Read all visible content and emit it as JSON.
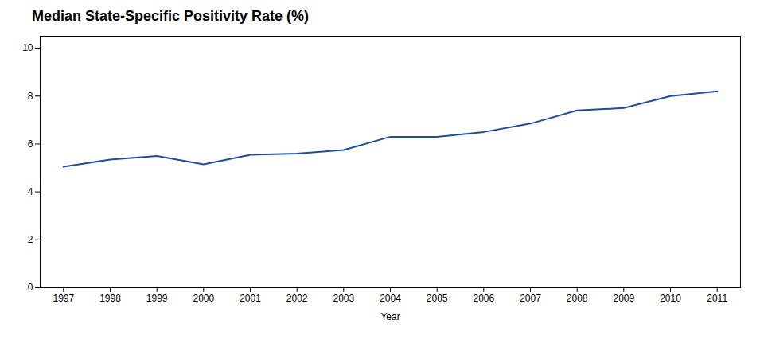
{
  "chart_data": {
    "type": "line",
    "title": "Median State-Specific Positivity Rate (%)",
    "xlabel": "Year",
    "x": [
      1997,
      1998,
      1999,
      2000,
      2001,
      2002,
      2003,
      2004,
      2005,
      2006,
      2007,
      2008,
      2009,
      2010,
      2011
    ],
    "values": [
      5.05,
      5.35,
      5.5,
      5.15,
      5.55,
      5.6,
      5.75,
      6.3,
      6.3,
      6.5,
      6.85,
      7.4,
      7.5,
      8.0,
      8.2
    ],
    "color": "#1F4E99",
    "xlim": [
      1996.5,
      2011.5
    ],
    "xticks": [
      1997,
      1998,
      1999,
      2000,
      2001,
      2002,
      2003,
      2004,
      2005,
      2006,
      2007,
      2008,
      2009,
      2010,
      2011
    ],
    "ylim": [
      0,
      10.5
    ],
    "yticks": [
      0,
      2,
      4,
      6,
      8,
      10
    ],
    "grid": false
  }
}
